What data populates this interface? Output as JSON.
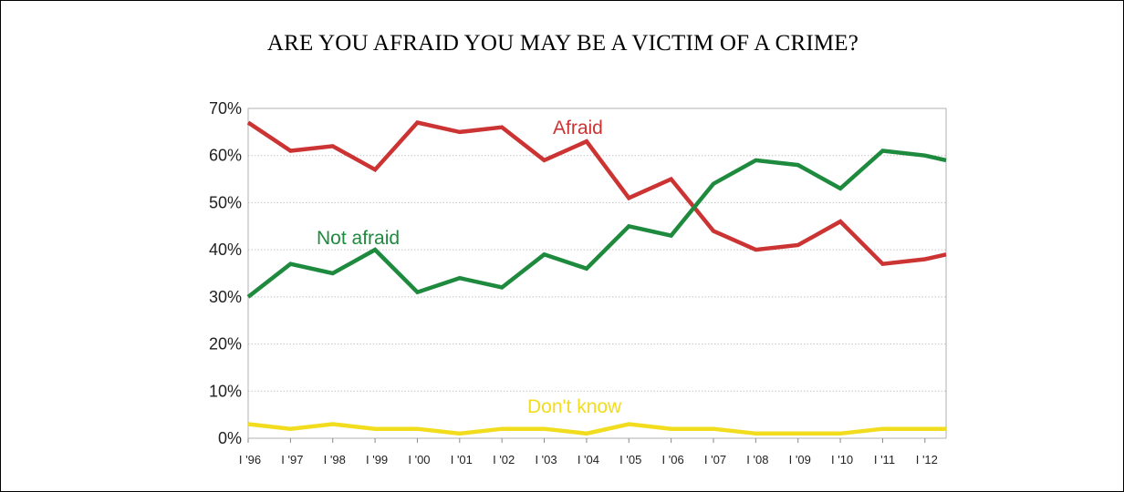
{
  "chart_data": {
    "type": "line",
    "title": "ARE YOU AFRAID YOU MAY BE A VICTIM OF A CRIME?",
    "xlabel": "",
    "ylabel": "",
    "categories": [
      "I '96",
      "I '97",
      "I '98",
      "I '99",
      "I '00",
      "I '01",
      "I '02",
      "I '03",
      "I '04",
      "I '05",
      "I '06",
      "I '07",
      "I '08",
      "I '09",
      "I '10",
      "I '11",
      "I '12"
    ],
    "x_tick_labels": [
      "I '96",
      "I '97",
      "I '98",
      "I '99",
      "I '00",
      "I '01",
      "I '02",
      "I '03",
      "I '04",
      "I '05",
      "I '06",
      "I '07",
      "I '08",
      "I '09",
      "I '10",
      "I '11",
      "I '12"
    ],
    "y_tick_labels": [
      "0%",
      "10%",
      "20%",
      "30%",
      "40%",
      "50%",
      "60%",
      "70%"
    ],
    "ylim": [
      0,
      70
    ],
    "grid": true,
    "x": [
      1996.0,
      1997.0,
      1998.0,
      1999.0,
      2000.0,
      2001.0,
      2002.0,
      2003.0,
      2004.0,
      2005.0,
      2006.0,
      2007.0,
      2008.0,
      2009.0,
      2010.0,
      2011.0,
      2012.0,
      2012.5
    ],
    "series": [
      {
        "name": "Afraid",
        "color": "#cc3333",
        "values": [
          67,
          61,
          62,
          57,
          67,
          65,
          66,
          59,
          63,
          51,
          55,
          44,
          40,
          41,
          46,
          37,
          38,
          39
        ]
      },
      {
        "name": "Not afraid",
        "color": "#1e8a3e",
        "values": [
          30,
          37,
          35,
          40,
          31,
          34,
          32,
          39,
          36,
          45,
          43,
          54,
          59,
          58,
          53,
          61,
          60,
          59
        ]
      },
      {
        "name": "Don't know",
        "color": "#f2dc1e",
        "values": [
          3,
          2,
          3,
          2,
          2,
          1,
          2,
          2,
          1,
          3,
          2,
          2,
          1,
          1,
          1,
          2,
          2,
          2
        ]
      }
    ]
  }
}
